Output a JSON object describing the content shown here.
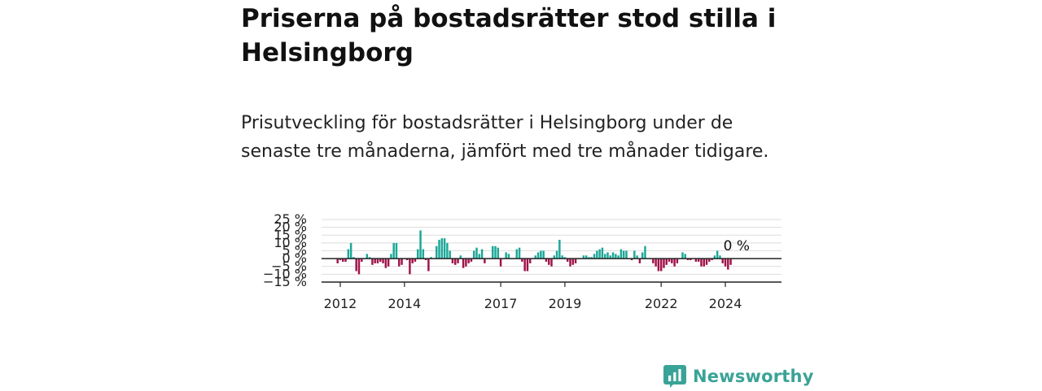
{
  "page": {
    "title": "Priserna på bostadsrätter stod stilla i Helsingborg",
    "subtitle": "Prisutveckling för bostadsrätter i Helsingborg under de senaste tre månaderna, jämfört med tre månader tidigare."
  },
  "brand": {
    "name": "Newsworthy",
    "icon": "newsworthy-logo-icon",
    "color": "#3aa397"
  },
  "colors": {
    "positive": "#1ba798",
    "negative": "#a0134a",
    "gridline": "#dddddd",
    "axis": "#222222"
  },
  "chart_data": {
    "type": "bar",
    "title": "",
    "xlabel": "",
    "ylabel": "",
    "ylim": [
      -15,
      25
    ],
    "yticks": [
      {
        "value": 25,
        "label": "25 %"
      },
      {
        "value": 20,
        "label": "20 %"
      },
      {
        "value": 15,
        "label": "15 %"
      },
      {
        "value": 10,
        "label": "10 %"
      },
      {
        "value": 5,
        "label": "5 %"
      },
      {
        "value": 0,
        "label": "0 %"
      },
      {
        "value": -5,
        "label": "−5 %"
      },
      {
        "value": -10,
        "label": "−10 %"
      },
      {
        "value": -15,
        "label": "−15 %"
      }
    ],
    "xlim": [
      "2011-06",
      "2025-10"
    ],
    "xticks": [
      {
        "date": "2012-01",
        "label": "2012"
      },
      {
        "date": "2014-01",
        "label": "2014"
      },
      {
        "date": "2017-01",
        "label": "2017"
      },
      {
        "date": "2019-01",
        "label": "2019"
      },
      {
        "date": "2022-01",
        "label": "2022"
      },
      {
        "date": "2024-01",
        "label": "2024"
      }
    ],
    "grid": true,
    "last_value_label": "0 %",
    "start": "2011-12",
    "values": [
      -3,
      -1,
      -2,
      -2,
      6,
      10,
      1,
      -8,
      -10,
      -2,
      0,
      3,
      1,
      -4,
      -3,
      -3,
      -2,
      -3,
      -6,
      -5,
      3,
      10,
      10,
      -5,
      -4,
      0,
      -1,
      -10,
      -3,
      -2,
      6,
      18,
      6,
      -1,
      -8,
      1,
      0,
      8,
      12,
      13,
      13,
      10,
      5,
      -3,
      -4,
      -3,
      2,
      -6,
      -5,
      -3,
      -2,
      5,
      7,
      3,
      6,
      -3,
      0,
      0,
      8,
      8,
      7,
      -5,
      0,
      4,
      3,
      0,
      0,
      6,
      7,
      -2,
      -8,
      -8,
      -3,
      0,
      2,
      4,
      5,
      5,
      -2,
      -4,
      -5,
      2,
      5,
      12,
      2,
      1,
      -2,
      -5,
      -4,
      -3,
      0,
      0,
      2,
      2,
      1,
      1,
      3,
      5,
      6,
      7,
      3,
      4,
      2,
      4,
      3,
      2,
      6,
      5,
      5,
      0,
      -1,
      5,
      2,
      -3,
      4,
      8,
      0,
      0,
      -3,
      -5,
      -8,
      -8,
      -6,
      -4,
      -2,
      -3,
      -5,
      -3,
      0,
      4,
      3,
      -1,
      -1,
      0,
      -2,
      -2,
      -5,
      -5,
      -4,
      -2,
      -1,
      2,
      5,
      2,
      -3,
      -5,
      -7,
      -4,
      0
    ]
  }
}
